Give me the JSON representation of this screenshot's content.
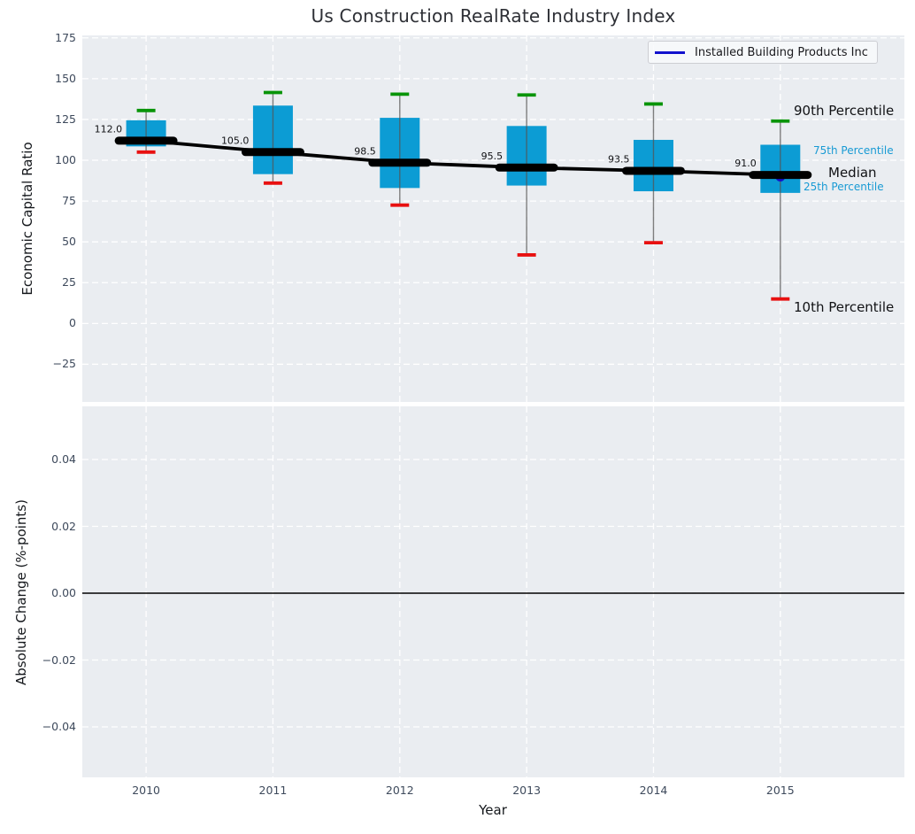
{
  "annotations": {
    "p90": "90th Percentile",
    "p75": "75th Percentile",
    "median": "Median",
    "p25": "25th Percentile",
    "p10": "10th Percentile"
  },
  "legend": {
    "label": "Installed Building Products Inc",
    "line_color": "#1111cd"
  },
  "colors": {
    "axes_background": "#eaedf1",
    "grid": "#ffffff",
    "box_fill": "#0c9cd4",
    "cap_high_green": "#089408",
    "cap_low_red": "#e81010",
    "whisker": "#555555",
    "median_black": "#000000",
    "company_blue": "#1111cd",
    "percentile_text_cyan": "#189ad4",
    "tick_label": "#3e4a5c",
    "title_text": "#2e3036"
  },
  "chart_data": [
    {
      "type": "boxplot",
      "panel": "top",
      "title": "Us Construction RealRate Industry Index",
      "xlabel": "Year",
      "ylabel": "Economic Capital Ratio",
      "x": [
        2010,
        2011,
        2012,
        2013,
        2014,
        2015
      ],
      "x_labels": [
        "2010",
        "2011",
        "2012",
        "2013",
        "2014",
        "2015"
      ],
      "yticks": [
        175,
        150,
        125,
        100,
        75,
        50,
        25,
        0,
        -25
      ],
      "ytick_labels": [
        "175",
        "150",
        "125",
        "100",
        "75",
        "50",
        "25",
        "0",
        "−25"
      ],
      "ylim": [
        -48.1,
        176.5
      ],
      "xlim": [
        2009.497,
        2015.978
      ],
      "grid": "white-dashed",
      "legend_position": "upper right",
      "series": [
        {
          "name": "Industry percentile box-whisker",
          "p10": [
            105,
            86,
            72.5,
            42,
            49.5,
            15
          ],
          "p25": [
            108.5,
            91.5,
            83,
            84.5,
            81,
            80
          ],
          "median": [
            112.0,
            105.0,
            98.5,
            95.5,
            93.5,
            91.0
          ],
          "p75": [
            124.5,
            133.5,
            126,
            121,
            112.5,
            109.5
          ],
          "p90": [
            130.5,
            141.5,
            140.5,
            140,
            134.5,
            124
          ]
        },
        {
          "name": "Installed Building Products Inc",
          "points": [
            {
              "x": 2015,
              "y": 90
            }
          ]
        }
      ],
      "median_labels": [
        "112.0",
        "105.0",
        "98.5",
        "95.5",
        "93.5",
        "91.0"
      ]
    },
    {
      "type": "line",
      "panel": "bottom",
      "ylabel": "Absolute Change (%-points)",
      "yticks": [
        0.04,
        0.02,
        0.0,
        -0.02,
        -0.04
      ],
      "ytick_labels": [
        "0.04",
        "0.02",
        "0.00",
        "−0.02",
        "−0.04"
      ],
      "ylim": [
        -0.0551,
        0.0559
      ],
      "zero_line": 0.0,
      "grid": "white-dashed",
      "series": []
    }
  ]
}
